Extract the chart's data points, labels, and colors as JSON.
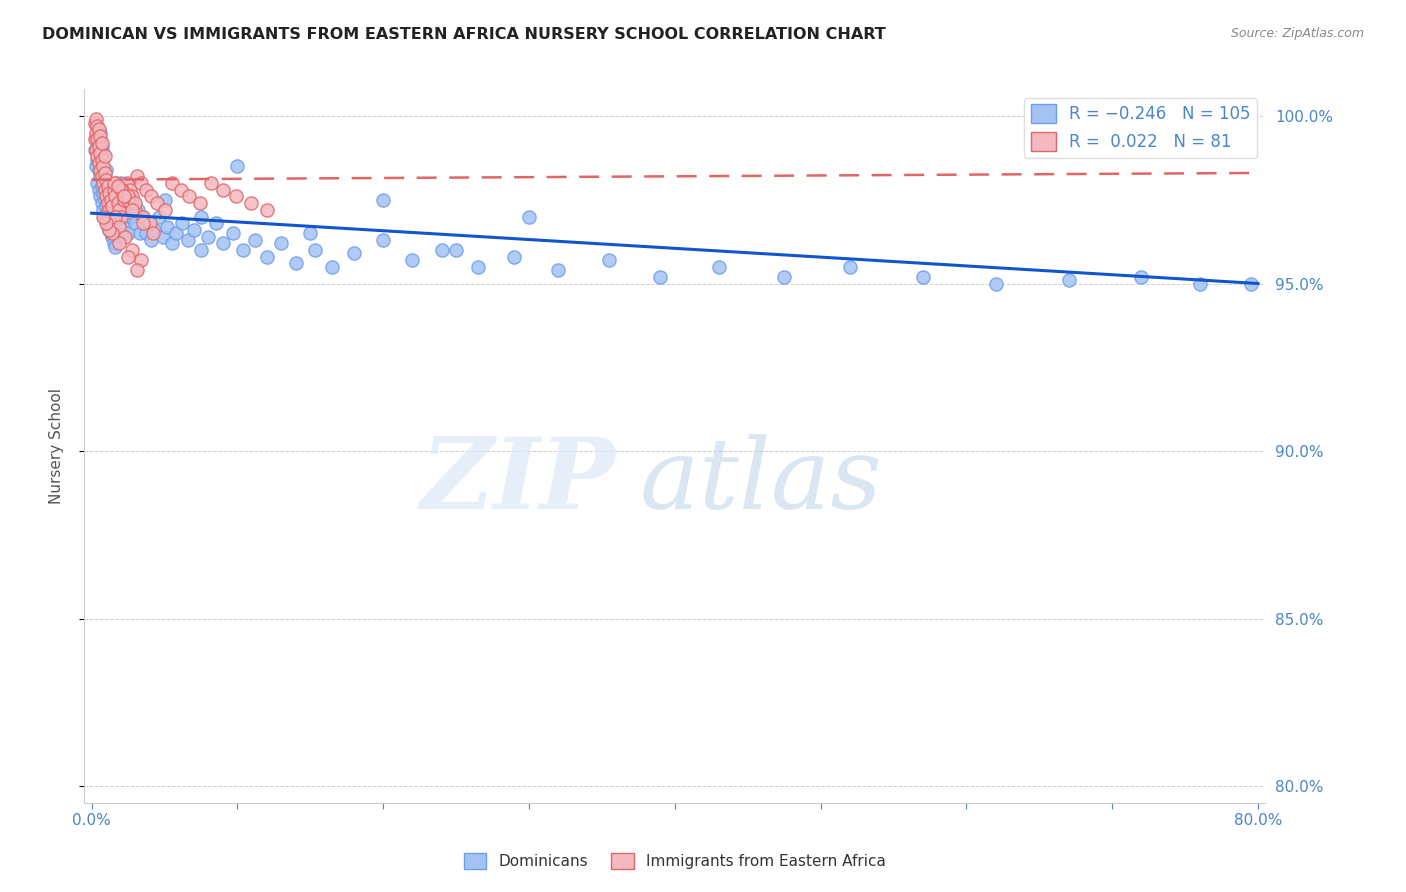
{
  "title": "DOMINICAN VS IMMIGRANTS FROM EASTERN AFRICA NURSERY SCHOOL CORRELATION CHART",
  "source": "Source: ZipAtlas.com",
  "ylabel": "Nursery School",
  "xlim": [
    -0.005,
    0.805
  ],
  "ylim": [
    0.795,
    1.008
  ],
  "yticks": [
    0.8,
    0.85,
    0.9,
    0.95,
    1.0
  ],
  "ytick_labels": [
    "80.0%",
    "85.0%",
    "90.0%",
    "95.0%",
    "100.0%"
  ],
  "xticks": [
    0.0,
    0.1,
    0.2,
    0.3,
    0.4,
    0.5,
    0.6,
    0.7,
    0.8
  ],
  "xtick_labels": [
    "0.0%",
    "",
    "",
    "",
    "",
    "",
    "",
    "",
    "80.0%"
  ],
  "blue_R": -0.246,
  "blue_N": 105,
  "pink_R": 0.022,
  "pink_N": 81,
  "blue_color": "#a4c2f4",
  "pink_color": "#f4b8c1",
  "blue_edge_color": "#6d9eeb",
  "pink_edge_color": "#e06666",
  "trend_blue_color": "#1155cc",
  "trend_pink_color": "#cc4125",
  "axis_color": "#4a86c8",
  "grid_color": "#b0b0b0",
  "legend_label_blue": "Dominicans",
  "legend_label_pink": "Immigrants from Eastern Africa",
  "watermark_zip": "ZIP",
  "watermark_atlas": "atlas",
  "blue_trend_x0": 0.0,
  "blue_trend_y0": 0.971,
  "blue_trend_x1": 0.8,
  "blue_trend_y1": 0.95,
  "pink_trend_x0": 0.0,
  "pink_trend_y0": 0.981,
  "pink_trend_x1": 0.8,
  "pink_trend_y1": 0.983,
  "blue_x": [
    0.002,
    0.003,
    0.003,
    0.004,
    0.004,
    0.004,
    0.005,
    0.005,
    0.005,
    0.006,
    0.006,
    0.006,
    0.006,
    0.007,
    0.007,
    0.007,
    0.007,
    0.008,
    0.008,
    0.008,
    0.008,
    0.009,
    0.009,
    0.009,
    0.01,
    0.01,
    0.01,
    0.01,
    0.011,
    0.011,
    0.011,
    0.012,
    0.012,
    0.013,
    0.013,
    0.014,
    0.014,
    0.015,
    0.015,
    0.016,
    0.016,
    0.017,
    0.018,
    0.019,
    0.02,
    0.021,
    0.022,
    0.023,
    0.024,
    0.025,
    0.027,
    0.028,
    0.03,
    0.032,
    0.033,
    0.035,
    0.037,
    0.039,
    0.041,
    0.043,
    0.046,
    0.049,
    0.052,
    0.055,
    0.058,
    0.062,
    0.066,
    0.07,
    0.075,
    0.08,
    0.085,
    0.09,
    0.097,
    0.104,
    0.112,
    0.12,
    0.13,
    0.14,
    0.153,
    0.165,
    0.18,
    0.2,
    0.22,
    0.24,
    0.265,
    0.29,
    0.32,
    0.355,
    0.39,
    0.43,
    0.475,
    0.52,
    0.57,
    0.62,
    0.67,
    0.72,
    0.76,
    0.795,
    0.05,
    0.075,
    0.1,
    0.15,
    0.2,
    0.25,
    0.3
  ],
  "blue_y": [
    0.99,
    0.985,
    0.993,
    0.98,
    0.987,
    0.994,
    0.978,
    0.984,
    0.991,
    0.976,
    0.982,
    0.988,
    0.995,
    0.974,
    0.979,
    0.985,
    0.991,
    0.972,
    0.977,
    0.983,
    0.989,
    0.97,
    0.975,
    0.981,
    0.969,
    0.973,
    0.978,
    0.984,
    0.967,
    0.972,
    0.977,
    0.966,
    0.971,
    0.965,
    0.97,
    0.964,
    0.969,
    0.962,
    0.967,
    0.961,
    0.966,
    0.975,
    0.97,
    0.968,
    0.98,
    0.972,
    0.975,
    0.968,
    0.972,
    0.965,
    0.97,
    0.975,
    0.968,
    0.972,
    0.965,
    0.97,
    0.965,
    0.968,
    0.963,
    0.966,
    0.97,
    0.964,
    0.967,
    0.962,
    0.965,
    0.968,
    0.963,
    0.966,
    0.96,
    0.964,
    0.968,
    0.962,
    0.965,
    0.96,
    0.963,
    0.958,
    0.962,
    0.956,
    0.96,
    0.955,
    0.959,
    0.963,
    0.957,
    0.96,
    0.955,
    0.958,
    0.954,
    0.957,
    0.952,
    0.955,
    0.952,
    0.955,
    0.952,
    0.95,
    0.951,
    0.952,
    0.95,
    0.95,
    0.975,
    0.97,
    0.985,
    0.965,
    0.975,
    0.96,
    0.97
  ],
  "pink_x": [
    0.002,
    0.002,
    0.003,
    0.003,
    0.003,
    0.004,
    0.004,
    0.004,
    0.005,
    0.005,
    0.005,
    0.006,
    0.006,
    0.006,
    0.007,
    0.007,
    0.007,
    0.008,
    0.008,
    0.009,
    0.009,
    0.009,
    0.01,
    0.01,
    0.011,
    0.011,
    0.012,
    0.012,
    0.013,
    0.014,
    0.015,
    0.016,
    0.017,
    0.018,
    0.019,
    0.02,
    0.022,
    0.024,
    0.026,
    0.028,
    0.031,
    0.034,
    0.037,
    0.041,
    0.045,
    0.05,
    0.055,
    0.061,
    0.067,
    0.074,
    0.082,
    0.09,
    0.099,
    0.109,
    0.12,
    0.021,
    0.025,
    0.03,
    0.035,
    0.04,
    0.015,
    0.02,
    0.025,
    0.03,
    0.018,
    0.022,
    0.028,
    0.035,
    0.042,
    0.016,
    0.019,
    0.023,
    0.028,
    0.034,
    0.019,
    0.025,
    0.031,
    0.014,
    0.012,
    0.01,
    0.008
  ],
  "pink_y": [
    0.993,
    0.998,
    0.99,
    0.995,
    0.999,
    0.988,
    0.993,
    0.997,
    0.986,
    0.991,
    0.996,
    0.984,
    0.989,
    0.994,
    0.982,
    0.987,
    0.992,
    0.98,
    0.985,
    0.978,
    0.983,
    0.988,
    0.976,
    0.981,
    0.974,
    0.979,
    0.972,
    0.977,
    0.975,
    0.973,
    0.978,
    0.976,
    0.98,
    0.974,
    0.972,
    0.97,
    0.975,
    0.98,
    0.978,
    0.976,
    0.982,
    0.98,
    0.978,
    0.976,
    0.974,
    0.972,
    0.98,
    0.978,
    0.976,
    0.974,
    0.98,
    0.978,
    0.976,
    0.974,
    0.972,
    0.978,
    0.975,
    0.972,
    0.97,
    0.968,
    0.98,
    0.978,
    0.976,
    0.974,
    0.979,
    0.976,
    0.972,
    0.968,
    0.965,
    0.97,
    0.967,
    0.964,
    0.96,
    0.957,
    0.962,
    0.958,
    0.954,
    0.965,
    0.966,
    0.968,
    0.97
  ]
}
